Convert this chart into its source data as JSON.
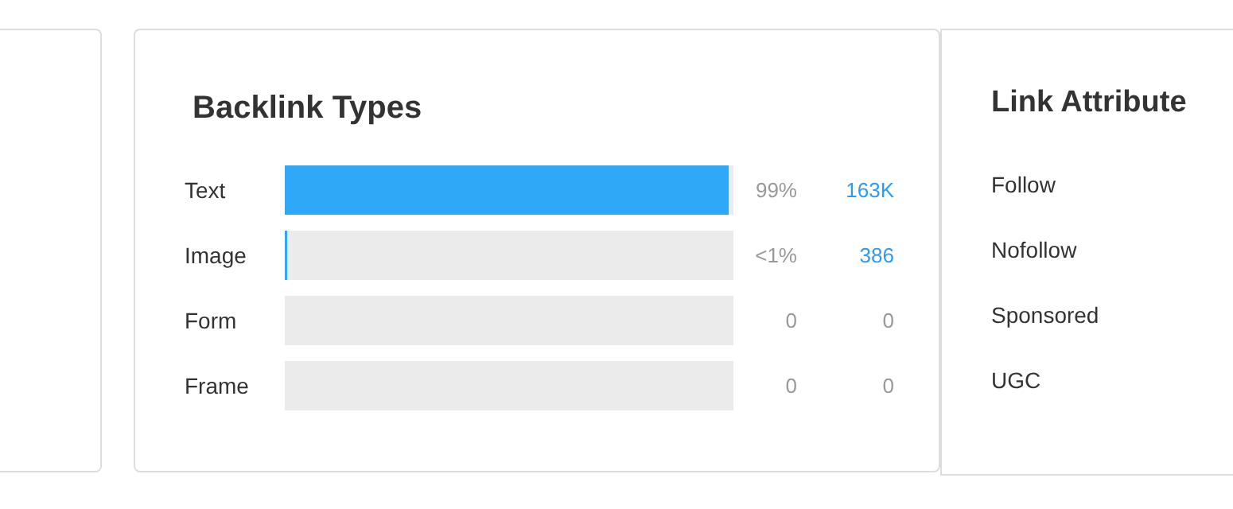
{
  "chart_data": [
    {
      "type": "bar",
      "orientation": "horizontal",
      "stacked": true,
      "title": "Backlink Types",
      "categories": [
        "Text",
        "Image",
        "Form",
        "Frame"
      ],
      "xlim": [
        0,
        100
      ],
      "tick_labels": false,
      "series": [
        {
          "color": "#2ea8f7",
          "values": [
            99,
            0.6,
            0,
            0
          ],
          "value_labels": [
            "99%",
            "<1%",
            "0",
            "0"
          ]
        },
        {
          "color": "#ebebeb",
          "values": [
            1,
            99.4,
            100,
            100
          ]
        }
      ],
      "annotations": [
        "163K",
        "386",
        "0",
        "0"
      ]
    },
    {
      "type": "other",
      "title": "Link Attribute",
      "categories": [
        "Follow",
        "Nofollow",
        "Sponsored",
        "UGC"
      ]
    }
  ]
}
